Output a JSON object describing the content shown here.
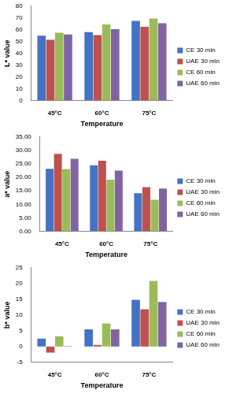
{
  "chart_data": [
    {
      "type": "bar",
      "y_label": "L* value",
      "x_label": "Temperature",
      "categories": [
        "45°C",
        "60°C",
        "75°C"
      ],
      "series": [
        {
          "name": "CE 30 min",
          "color": "#4472c4",
          "values": [
            55,
            58,
            67.5
          ]
        },
        {
          "name": "UAE 30 min",
          "color": "#c0504d",
          "values": [
            51.5,
            55.5,
            62.5
          ]
        },
        {
          "name": "CE 60 min",
          "color": "#9bbb59",
          "values": [
            57.5,
            64.5,
            69.5
          ]
        },
        {
          "name": "UAE 60 min",
          "color": "#8064a2",
          "values": [
            56,
            60.5,
            65.5
          ]
        }
      ],
      "ylim": [
        0,
        80
      ],
      "yticks": [
        0,
        10,
        20,
        30,
        40,
        50,
        60,
        70,
        80
      ],
      "grid": false,
      "legend": "right"
    },
    {
      "type": "bar",
      "y_label": "a* value",
      "x_label": "Temperature",
      "categories": [
        "45°C",
        "60°C",
        "75°C"
      ],
      "series": [
        {
          "name": "CE 30 min",
          "color": "#4472c4",
          "values": [
            23.2,
            24.5,
            14.1
          ]
        },
        {
          "name": "UAE 30 min",
          "color": "#c0504d",
          "values": [
            28.7,
            26.2,
            16.4
          ]
        },
        {
          "name": "CE 60 min",
          "color": "#9bbb59",
          "values": [
            23.1,
            19.2,
            11.7
          ]
        },
        {
          "name": "UAE 60 min",
          "color": "#8064a2",
          "values": [
            26.9,
            22.5,
            15.9
          ]
        }
      ],
      "ylim": [
        0,
        35
      ],
      "yticks": [
        {
          "value": 0,
          "label": "0.00"
        },
        {
          "value": 5,
          "label": "5.00"
        },
        {
          "value": 10,
          "label": "10.00"
        },
        {
          "value": 15,
          "label": "15.00"
        },
        {
          "value": 20,
          "label": "20.00"
        },
        {
          "value": 25,
          "label": "25.00"
        },
        {
          "value": 30,
          "label": "30.00"
        },
        {
          "value": 35,
          "label": "35.00"
        }
      ],
      "grid": false,
      "legend": "right"
    },
    {
      "type": "bar",
      "y_label": "b* value",
      "x_label": "Temperature",
      "categories": [
        "45°C",
        "60°C",
        "75°C"
      ],
      "series": [
        {
          "name": "CE 30 min",
          "color": "#4472c4",
          "values": [
            2.5,
            5.4,
            14.8
          ]
        },
        {
          "name": "UAE 30 min",
          "color": "#c0504d",
          "values": [
            -2.0,
            0.5,
            11.8
          ]
        },
        {
          "name": "CE 60 min",
          "color": "#9bbb59",
          "values": [
            3.2,
            7.3,
            20.8
          ]
        },
        {
          "name": "UAE 60 min",
          "color": "#8064a2",
          "values": [
            0.1,
            5.4,
            14.1
          ]
        }
      ],
      "ylim": [
        -5,
        25
      ],
      "yticks": [
        -5,
        0,
        5,
        10,
        15,
        20,
        25
      ],
      "grid": false,
      "legend": "right"
    }
  ]
}
